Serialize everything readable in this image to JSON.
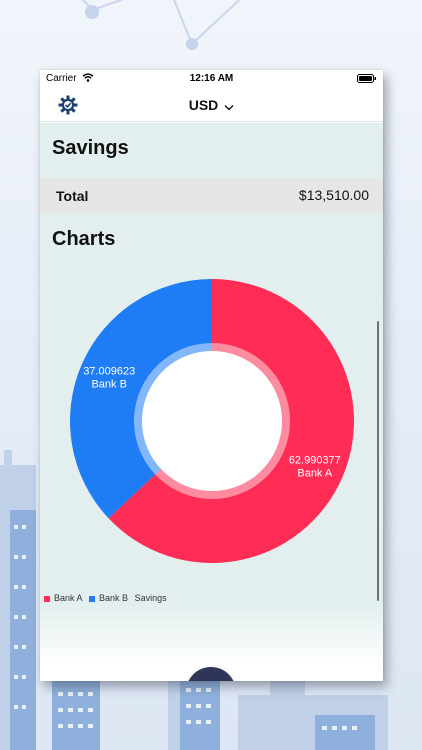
{
  "status_bar": {
    "carrier": "Carrier",
    "time": "12:16 AM"
  },
  "nav": {
    "currency": "USD",
    "settings_icon": "gear-icon",
    "dropdown_icon": "chevron-down-icon"
  },
  "savings": {
    "title": "Savings",
    "total_label": "Total",
    "total_value": "$13,510.00"
  },
  "charts": {
    "title": "Charts"
  },
  "colors": {
    "bank_a": "#ff2d55",
    "bank_b": "#1e7cf5",
    "background": "#e2efee",
    "fab": "#2e3557"
  },
  "chart_data": {
    "type": "pie",
    "categories": [
      "Bank A",
      "Bank B"
    ],
    "values": [
      62.990377,
      37.009623
    ],
    "value_labels": [
      "62.990377",
      "37.009623"
    ],
    "legend_labels": [
      "Bank A",
      "Bank B"
    ],
    "legend_title": "Savings",
    "donut": true,
    "legend_position": "bottom-left"
  },
  "fab": {
    "icon": "plus-icon"
  }
}
